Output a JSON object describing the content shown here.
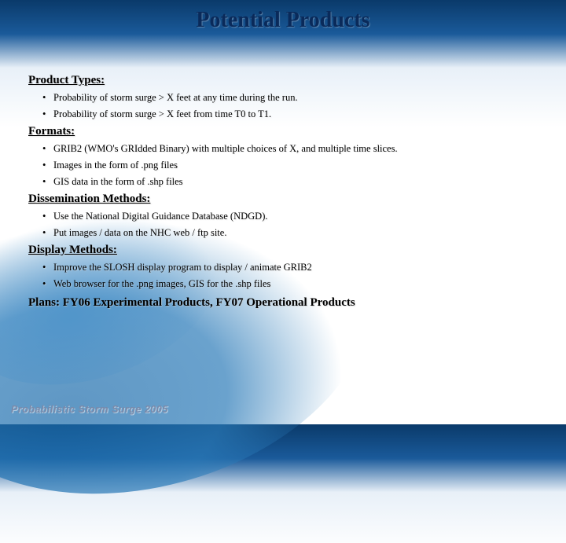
{
  "slide": {
    "title": "Potential Products",
    "footer": "Probabilistic Storm Surge 2005",
    "background": {
      "gradient_top": "#0a3a6a",
      "gradient_mid": "#1a5a9a",
      "gradient_light": "#e8f0f8",
      "base": "#ffffff",
      "swoosh_color": "#1a6aaa"
    },
    "sections": [
      {
        "heading": "Product Types:",
        "items": [
          "Probability of storm surge > X feet at any time during the run.",
          "Probability of storm surge > X feet from time T0 to T1."
        ]
      },
      {
        "heading": "Formats:",
        "items": [
          "GRIB2 (WMO's GRIdded Binary) with multiple choices of X, and multiple time slices.",
          "Images in the form of .png files",
          "GIS data in the form of .shp files"
        ]
      },
      {
        "heading": "Dissemination Methods:",
        "items": [
          "Use the National Digital Guidance Database (NDGD).",
          "Put images / data on the NHC web / ftp site."
        ]
      },
      {
        "heading": "Display Methods:",
        "items": [
          "Improve the SLOSH display program to display / animate GRIB2",
          "Web browser for the .png images, GIS for the .shp files"
        ]
      }
    ],
    "plans": "Plans: FY06 Experimental Products, FY07 Operational Products"
  },
  "typography": {
    "title_fontsize": 28,
    "heading_fontsize": 15,
    "bullet_fontsize": 12.5,
    "footer_fontsize": 12.5,
    "title_color": "#0a2a5a",
    "text_color": "#000000",
    "footer_color": "#7a8aaa"
  }
}
